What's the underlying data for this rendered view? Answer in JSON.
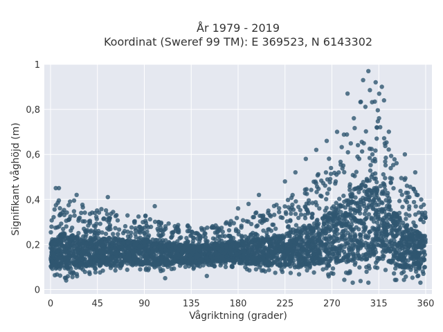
{
  "chart_data": {
    "type": "scatter",
    "title": "År 1979 - 2019",
    "subtitle": "Koordinat (Sweref 99 TM): E 369523, N 6143302",
    "xlabel": "Vågriktning (grader)",
    "ylabel": "Signifikant våghöjd (m)",
    "xlim": [
      -6,
      366
    ],
    "ylim": [
      -0.02,
      1.0
    ],
    "x_ticks": [
      0,
      45,
      90,
      135,
      180,
      225,
      270,
      315,
      360
    ],
    "x_tick_labels": [
      "0",
      "45",
      "90",
      "135",
      "180",
      "225",
      "270",
      "315",
      "360"
    ],
    "y_ticks": [
      0,
      0.2,
      0.4,
      0.6,
      0.8,
      1
    ],
    "y_tick_labels": [
      "0",
      "0,2",
      "0,4",
      "0,6",
      "0,8",
      "1"
    ],
    "grid": true,
    "marker_color": "#2f5670",
    "background_color": "#e5e8f0",
    "point_cloud_envelope": {
      "x": [
        0,
        10,
        20,
        30,
        45,
        60,
        75,
        90,
        105,
        120,
        135,
        150,
        165,
        180,
        195,
        210,
        225,
        240,
        255,
        270,
        280,
        290,
        300,
        305,
        310,
        315,
        320,
        330,
        340,
        350,
        360
      ],
      "upper": [
        0.35,
        0.42,
        0.4,
        0.38,
        0.36,
        0.36,
        0.33,
        0.33,
        0.3,
        0.3,
        0.28,
        0.28,
        0.3,
        0.32,
        0.34,
        0.36,
        0.4,
        0.45,
        0.5,
        0.6,
        0.68,
        0.76,
        0.86,
        0.9,
        0.92,
        0.9,
        0.82,
        0.6,
        0.5,
        0.45,
        0.38
      ],
      "lower": [
        0.06,
        0.05,
        0.05,
        0.06,
        0.07,
        0.07,
        0.08,
        0.08,
        0.08,
        0.09,
        0.09,
        0.1,
        0.1,
        0.09,
        0.08,
        0.07,
        0.06,
        0.05,
        0.05,
        0.05,
        0.04,
        0.04,
        0.03,
        0.03,
        0.03,
        0.03,
        0.04,
        0.04,
        0.04,
        0.04,
        0.06
      ]
    },
    "outliers": [
      {
        "x": 305,
        "y": 0.97
      },
      {
        "x": 300,
        "y": 0.93
      },
      {
        "x": 312,
        "y": 0.92
      },
      {
        "x": 318,
        "y": 0.9
      },
      {
        "x": 285,
        "y": 0.87
      },
      {
        "x": 320,
        "y": 0.84
      },
      {
        "x": 275,
        "y": 0.7
      },
      {
        "x": 265,
        "y": 0.66
      },
      {
        "x": 255,
        "y": 0.62
      },
      {
        "x": 245,
        "y": 0.58
      },
      {
        "x": 340,
        "y": 0.6
      },
      {
        "x": 235,
        "y": 0.52
      },
      {
        "x": 225,
        "y": 0.48
      },
      {
        "x": 350,
        "y": 0.52
      },
      {
        "x": 200,
        "y": 0.42
      },
      {
        "x": 5,
        "y": 0.45
      },
      {
        "x": 8,
        "y": 0.45
      },
      {
        "x": 25,
        "y": 0.42
      },
      {
        "x": 55,
        "y": 0.41
      },
      {
        "x": 100,
        "y": 0.37
      },
      {
        "x": 180,
        "y": 0.36
      },
      {
        "x": 190,
        "y": 0.38
      },
      {
        "x": 15,
        "y": 0.04
      },
      {
        "x": 110,
        "y": 0.05
      },
      {
        "x": 150,
        "y": 0.06
      },
      {
        "x": 290,
        "y": 0.03
      },
      {
        "x": 305,
        "y": 0.03
      },
      {
        "x": 355,
        "y": 0.03
      }
    ]
  }
}
